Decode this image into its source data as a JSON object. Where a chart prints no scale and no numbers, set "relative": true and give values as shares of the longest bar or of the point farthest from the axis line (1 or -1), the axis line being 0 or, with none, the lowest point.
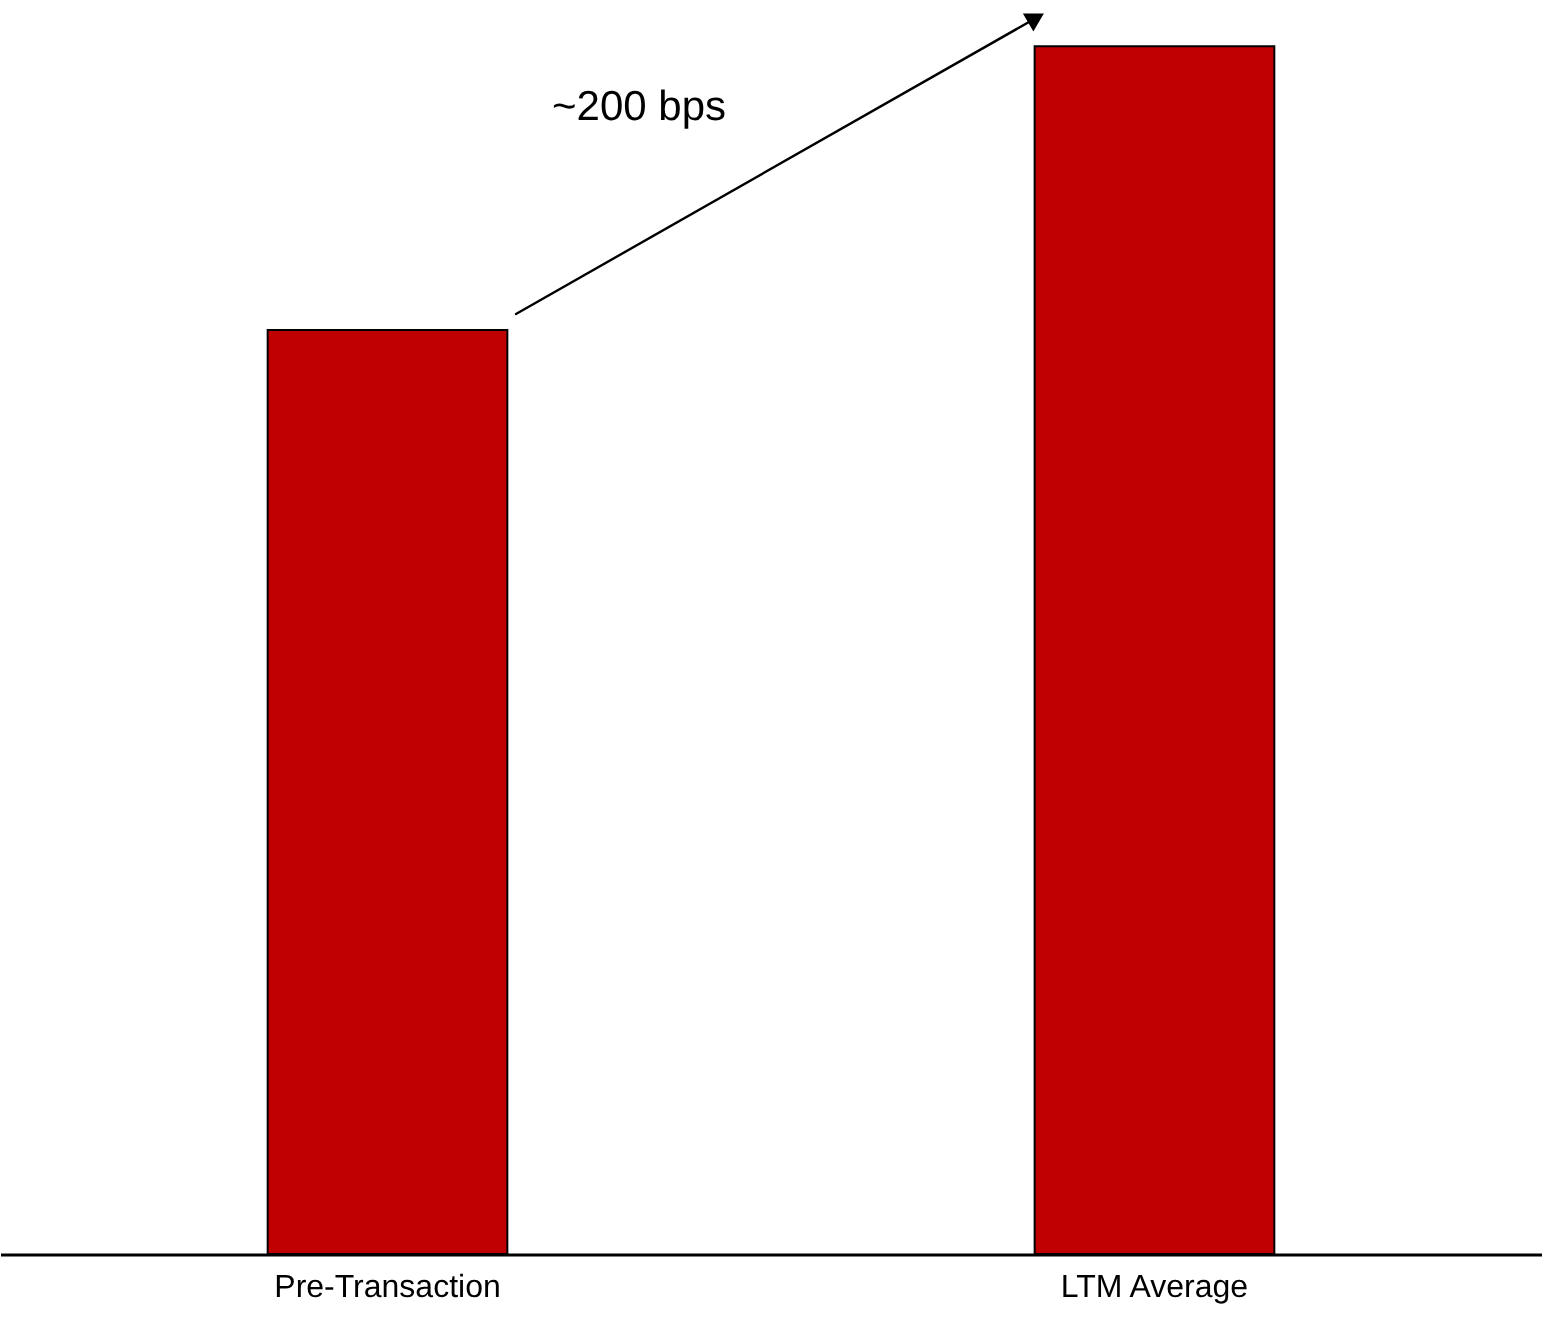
{
  "chart_data": {
    "type": "bar",
    "relative": true,
    "categories": [
      "Pre-Transaction",
      "LTM Average"
    ],
    "values": [
      0.765,
      1
    ],
    "color": "#c00000",
    "annotations": [
      "~200 bps"
    ],
    "grid": false
  }
}
